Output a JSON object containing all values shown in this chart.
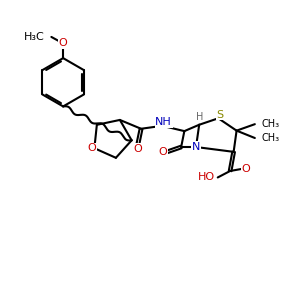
{
  "figsize": [
    3.0,
    3.0
  ],
  "dpi": 100,
  "xlim": [
    0,
    10
  ],
  "ylim": [
    0,
    10
  ],
  "colors": {
    "bond": "#000000",
    "O": "#cc0000",
    "N": "#0000bb",
    "S": "#888800",
    "H_gray": "#666666"
  },
  "lw": 1.5,
  "fs_main": 8.0,
  "fs_small": 7.0
}
